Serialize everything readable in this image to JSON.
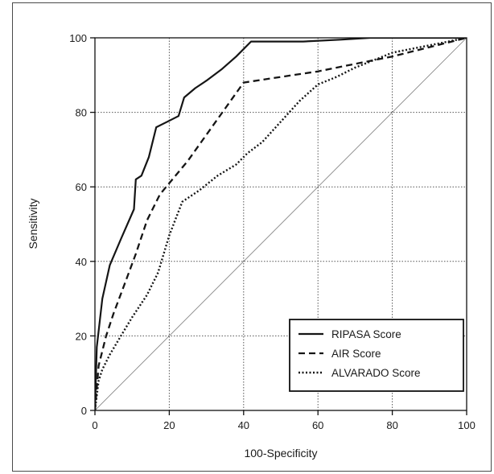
{
  "chart_data": {
    "type": "line",
    "title": "",
    "xlabel": "100-Specificity",
    "ylabel": "Sensitivity",
    "xlim": [
      0,
      100
    ],
    "ylim": [
      0,
      100
    ],
    "xticks": [
      "0",
      "20",
      "40",
      "60",
      "80",
      "100"
    ],
    "yticks": [
      "0",
      "20",
      "40",
      "60",
      "80",
      "100"
    ],
    "grid": true,
    "legend_position": "bottom-right",
    "diagonal_reference": true,
    "series": [
      {
        "name": "RIPASA Score",
        "style": "solid",
        "x": [
          0,
          0.5,
          2,
          4,
          7,
          10.5,
          11,
          12.5,
          14.5,
          16.5,
          19.5,
          22.5,
          24,
          27,
          30,
          34,
          38,
          42,
          48,
          56,
          66,
          74,
          84,
          100
        ],
        "y": [
          0,
          17,
          30,
          39,
          46,
          54,
          62,
          63,
          68,
          76,
          77.5,
          79,
          84,
          86.5,
          88.5,
          91.5,
          95,
          99,
          99,
          99,
          99.5,
          100,
          100,
          100
        ]
      },
      {
        "name": "AIR Score",
        "style": "dashed",
        "x": [
          0,
          1,
          3,
          5,
          8,
          11,
          14,
          17.5,
          20,
          25,
          30,
          35,
          40,
          50,
          60,
          70,
          80,
          90,
          100
        ],
        "y": [
          0,
          12,
          20,
          26,
          34,
          42,
          51,
          58,
          61,
          67,
          74,
          81,
          88,
          89.5,
          91,
          93,
          95,
          97.5,
          100
        ]
      },
      {
        "name": "ALVARADO Score",
        "style": "dotted",
        "x": [
          0,
          1,
          2,
          4,
          7,
          10,
          14,
          17,
          20,
          23.5,
          28,
          33,
          38,
          41,
          45,
          50,
          55,
          60,
          65,
          70,
          75,
          80,
          90,
          100
        ],
        "y": [
          0,
          8,
          11,
          15,
          20,
          25,
          31,
          37,
          47,
          56,
          59,
          63,
          66,
          69,
          72,
          77.5,
          83,
          87.5,
          89.5,
          92,
          94,
          96,
          98,
          100
        ]
      }
    ]
  }
}
